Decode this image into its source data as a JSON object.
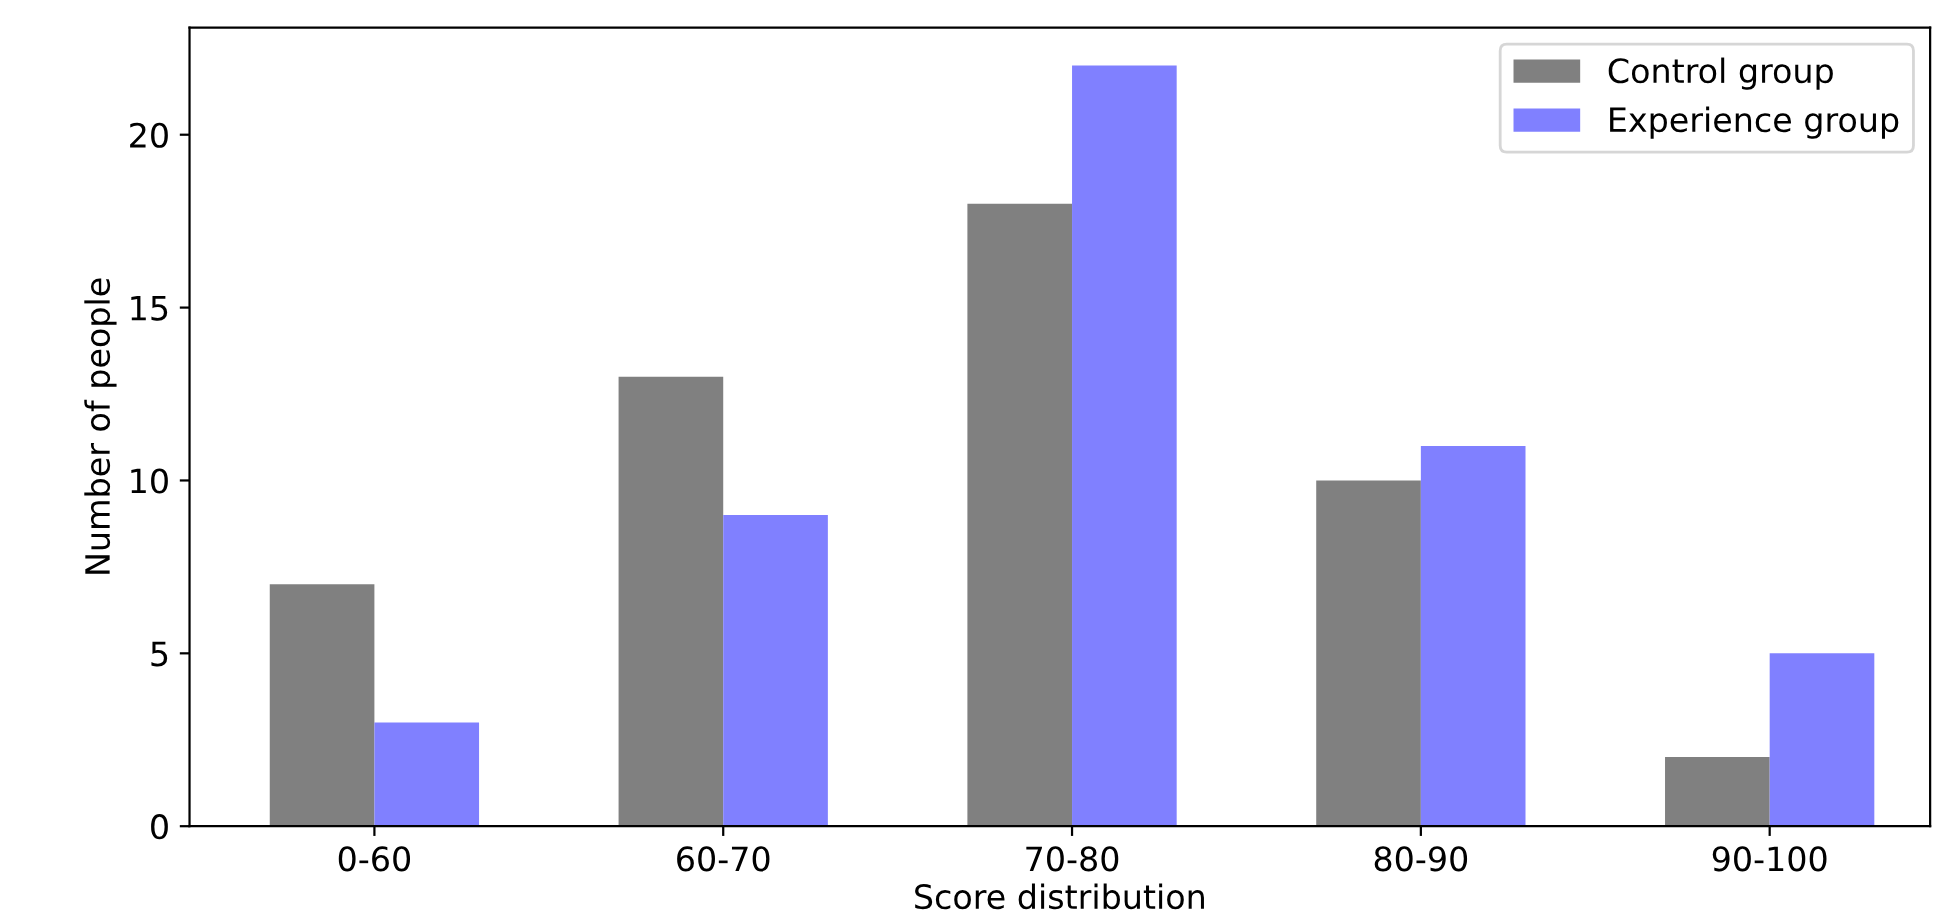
{
  "chart_data": {
    "type": "bar",
    "xlabel": "Score distribution",
    "ylabel": "Number of people",
    "categories": [
      "0-60",
      "60-70",
      "70-80",
      "80-90",
      "90-100"
    ],
    "series": [
      {
        "name": "Control group",
        "color": "#808080",
        "values": [
          7,
          13,
          18,
          10,
          2
        ]
      },
      {
        "name": "Experience group",
        "color": "#8080ff",
        "values": [
          3,
          9,
          22,
          11,
          5
        ]
      }
    ],
    "ylim": [
      0,
      23.1
    ],
    "yticks": [
      0,
      5,
      10,
      15,
      20
    ],
    "grid": false,
    "legend": "top right"
  }
}
